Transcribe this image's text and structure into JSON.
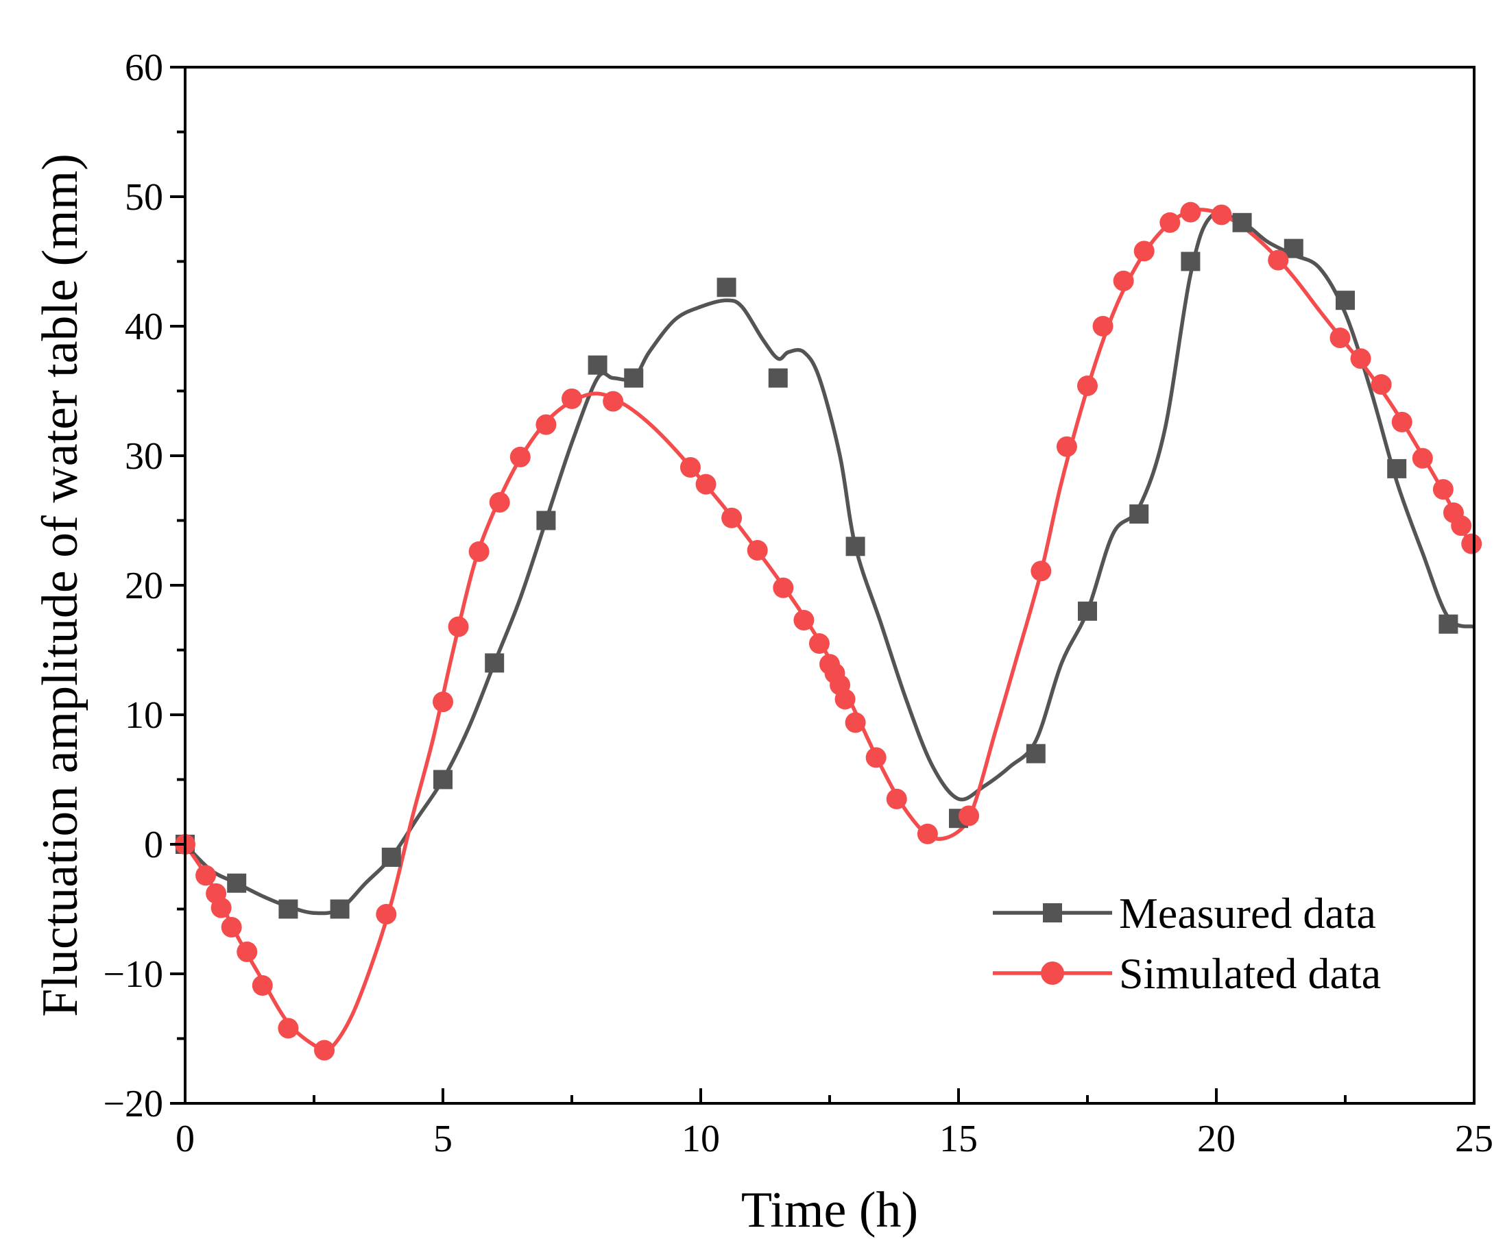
{
  "chart_data": {
    "type": "line",
    "title": "",
    "xlabel": "Time (h)",
    "ylabel": "Fluctuation amplitude of water table (mm)",
    "xlim": [
      0,
      25
    ],
    "ylim": [
      -20,
      60
    ],
    "x_ticks": [
      0,
      5,
      10,
      15,
      20,
      25
    ],
    "x_tick_labels": [
      "0",
      "5",
      "10",
      "15",
      "20",
      "25"
    ],
    "y_ticks": [
      -20,
      -10,
      0,
      10,
      20,
      30,
      40,
      50,
      60
    ],
    "y_tick_labels": [
      "−20",
      "−10",
      "0",
      "10",
      "20",
      "30",
      "40",
      "50",
      "60"
    ],
    "grid": false,
    "legend_position": "bottom-right",
    "series": [
      {
        "name": "Measured data",
        "color": "#545454",
        "marker": "square",
        "points": [
          [
            0,
            0
          ],
          [
            1,
            -3
          ],
          [
            2,
            -5
          ],
          [
            3,
            -5
          ],
          [
            4,
            -1
          ],
          [
            5,
            5
          ],
          [
            6,
            14
          ],
          [
            7,
            25
          ],
          [
            8,
            37
          ],
          [
            8.7,
            36
          ],
          [
            10.5,
            43
          ],
          [
            11.5,
            36
          ],
          [
            13,
            23
          ],
          [
            15,
            2
          ],
          [
            16.5,
            7
          ],
          [
            17.5,
            18
          ],
          [
            18.5,
            25.5
          ],
          [
            19.5,
            45
          ],
          [
            20.5,
            48
          ],
          [
            21.5,
            46
          ],
          [
            22.5,
            42
          ],
          [
            23.5,
            29
          ],
          [
            24.5,
            17
          ]
        ],
        "curve": [
          [
            0,
            0
          ],
          [
            0.5,
            -2
          ],
          [
            1,
            -3
          ],
          [
            1.5,
            -4
          ],
          [
            2,
            -4.8
          ],
          [
            2.5,
            -5.3
          ],
          [
            3,
            -5
          ],
          [
            3.5,
            -3
          ],
          [
            4,
            -1
          ],
          [
            4.5,
            2
          ],
          [
            5,
            5
          ],
          [
            5.5,
            9
          ],
          [
            6,
            14
          ],
          [
            6.5,
            19
          ],
          [
            7,
            25
          ],
          [
            7.5,
            31
          ],
          [
            8,
            36
          ],
          [
            8.3,
            36
          ],
          [
            8.7,
            36
          ],
          [
            9,
            38
          ],
          [
            9.5,
            40.5
          ],
          [
            10,
            41.5
          ],
          [
            10.5,
            42
          ],
          [
            10.8,
            41.5
          ],
          [
            11.2,
            39
          ],
          [
            11.5,
            37.5
          ],
          [
            11.7,
            38
          ],
          [
            12,
            38
          ],
          [
            12.3,
            36
          ],
          [
            12.7,
            30
          ],
          [
            13,
            23
          ],
          [
            13.5,
            17
          ],
          [
            14,
            11
          ],
          [
            14.5,
            6
          ],
          [
            15,
            3.5
          ],
          [
            15.5,
            4.5
          ],
          [
            16,
            6
          ],
          [
            16.5,
            8
          ],
          [
            17,
            14
          ],
          [
            17.5,
            18
          ],
          [
            18,
            24
          ],
          [
            18.5,
            26
          ],
          [
            19,
            32
          ],
          [
            19.5,
            44
          ],
          [
            19.9,
            48.5
          ],
          [
            20.5,
            48
          ],
          [
            21,
            46.5
          ],
          [
            21.5,
            45.5
          ],
          [
            22,
            44.5
          ],
          [
            22.5,
            41
          ],
          [
            23,
            35
          ],
          [
            23.5,
            28
          ],
          [
            24,
            22.5
          ],
          [
            24.5,
            17.5
          ],
          [
            25,
            16.8
          ]
        ]
      },
      {
        "name": "Simulated data",
        "color": "#f44c4c",
        "marker": "circle",
        "points": [
          [
            0,
            0
          ],
          [
            0.4,
            -2.4
          ],
          [
            0.6,
            -3.8
          ],
          [
            0.7,
            -4.9
          ],
          [
            0.9,
            -6.4
          ],
          [
            1.2,
            -8.3
          ],
          [
            1.5,
            -10.9
          ],
          [
            2,
            -14.2
          ],
          [
            2.7,
            -15.9
          ],
          [
            3.9,
            -5.4
          ],
          [
            5,
            11
          ],
          [
            5.3,
            16.8
          ],
          [
            5.7,
            22.6
          ],
          [
            6.1,
            26.4
          ],
          [
            6.5,
            29.9
          ],
          [
            7,
            32.4
          ],
          [
            7.5,
            34.4
          ],
          [
            8.3,
            34.2
          ],
          [
            9.8,
            29.1
          ],
          [
            10.1,
            27.8
          ],
          [
            10.6,
            25.2
          ],
          [
            11.1,
            22.7
          ],
          [
            11.6,
            19.8
          ],
          [
            12,
            17.3
          ],
          [
            12.3,
            15.5
          ],
          [
            12.5,
            13.9
          ],
          [
            12.6,
            13.2
          ],
          [
            12.7,
            12.3
          ],
          [
            12.8,
            11.2
          ],
          [
            13,
            9.4
          ],
          [
            13.4,
            6.7
          ],
          [
            13.8,
            3.5
          ],
          [
            14.4,
            0.8
          ],
          [
            15.2,
            2.2
          ],
          [
            16.6,
            21.1
          ],
          [
            17.1,
            30.7
          ],
          [
            17.5,
            35.4
          ],
          [
            17.8,
            40
          ],
          [
            18.2,
            43.5
          ],
          [
            18.6,
            45.8
          ],
          [
            19.1,
            48
          ],
          [
            19.5,
            48.8
          ],
          [
            20.1,
            48.6
          ],
          [
            21.2,
            45.1
          ],
          [
            22.4,
            39.1
          ],
          [
            22.8,
            37.5
          ],
          [
            23.2,
            35.5
          ],
          [
            23.6,
            32.6
          ],
          [
            24,
            29.8
          ],
          [
            24.4,
            27.4
          ],
          [
            24.6,
            25.6
          ],
          [
            24.75,
            24.6
          ],
          [
            24.95,
            23.2
          ]
        ],
        "curve": [
          [
            0,
            0
          ],
          [
            0.5,
            -3
          ],
          [
            1,
            -7
          ],
          [
            1.5,
            -10.5
          ],
          [
            2,
            -13.8
          ],
          [
            2.5,
            -15.5
          ],
          [
            2.8,
            -15.8
          ],
          [
            3.2,
            -13.5
          ],
          [
            3.6,
            -9.5
          ],
          [
            4,
            -4.5
          ],
          [
            4.4,
            2
          ],
          [
            4.8,
            8
          ],
          [
            5.2,
            15
          ],
          [
            5.6,
            21.5
          ],
          [
            6,
            25.8
          ],
          [
            6.5,
            29.8
          ],
          [
            7,
            32.6
          ],
          [
            7.5,
            34.2
          ],
          [
            8,
            34.8
          ],
          [
            8.5,
            34
          ],
          [
            9,
            32.5
          ],
          [
            9.5,
            30.5
          ],
          [
            10,
            28.2
          ],
          [
            10.5,
            25.8
          ],
          [
            11,
            23.2
          ],
          [
            11.5,
            20.5
          ],
          [
            12,
            17.6
          ],
          [
            12.5,
            14.3
          ],
          [
            13,
            10.2
          ],
          [
            13.5,
            6
          ],
          [
            14,
            2.5
          ],
          [
            14.5,
            0.5
          ],
          [
            15,
            1
          ],
          [
            15.3,
            3
          ],
          [
            15.7,
            8.5
          ],
          [
            16.1,
            14
          ],
          [
            16.6,
            21
          ],
          [
            17,
            28
          ],
          [
            17.5,
            35.2
          ],
          [
            18,
            41
          ],
          [
            18.5,
            45
          ],
          [
            19,
            47.6
          ],
          [
            19.5,
            48.9
          ],
          [
            20,
            48.8
          ],
          [
            20.5,
            47.7
          ],
          [
            21,
            46
          ],
          [
            21.5,
            43.8
          ],
          [
            22,
            41.2
          ],
          [
            22.5,
            38.7
          ],
          [
            23,
            36.2
          ],
          [
            23.5,
            33.3
          ],
          [
            24,
            30
          ],
          [
            24.5,
            26.5
          ],
          [
            25,
            22.5
          ]
        ]
      }
    ]
  }
}
